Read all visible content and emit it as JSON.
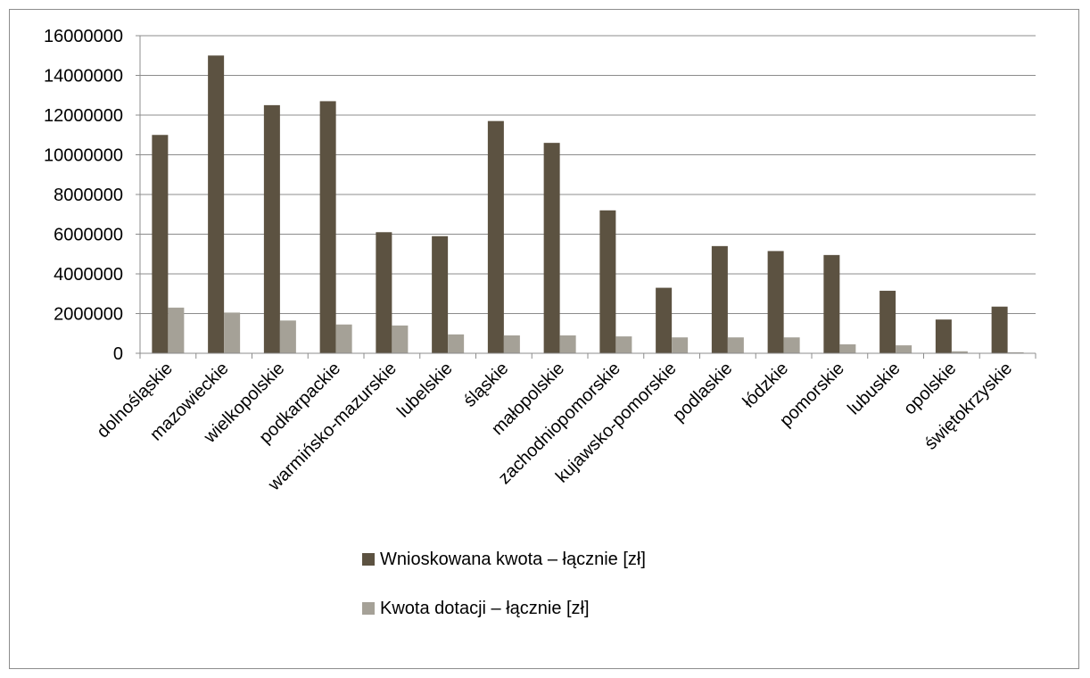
{
  "chart_data": {
    "type": "bar",
    "categories": [
      "dolnośląskie",
      "mazowieckie",
      "wielkopolskie",
      "podkarpackie",
      "warmińsko-mazurskie",
      "lubelskie",
      "śląskie",
      "małopolskie",
      "zachodniopomorskie",
      "kujawsko-pomorskie",
      "podlaskie",
      "łódzkie",
      "pomorskie",
      "lubuskie",
      "opolskie",
      "świętokrzyskie"
    ],
    "series": [
      {
        "name": "Wnioskowana kwota – łącznie [zł]",
        "color": "#5c5241",
        "values": [
          11000000,
          15000000,
          12500000,
          12700000,
          6100000,
          5900000,
          11700000,
          10600000,
          7200000,
          3300000,
          5400000,
          5150000,
          4950000,
          3150000,
          1700000,
          2350000
        ]
      },
      {
        "name": "Kwota dotacji – łącznie [zł]",
        "color": "#a5a197",
        "values": [
          2300000,
          2050000,
          1650000,
          1450000,
          1400000,
          950000,
          900000,
          900000,
          850000,
          800000,
          800000,
          800000,
          450000,
          400000,
          100000,
          50000
        ]
      }
    ],
    "yticks": [
      "0",
      "2000000",
      "4000000",
      "6000000",
      "8000000",
      "10000000",
      "12000000",
      "14000000",
      "16000000"
    ],
    "ylim": [
      0,
      16000000
    ],
    "xlabel": "",
    "ylabel": "",
    "title": "",
    "grid": true,
    "legend_position": "bottom"
  }
}
